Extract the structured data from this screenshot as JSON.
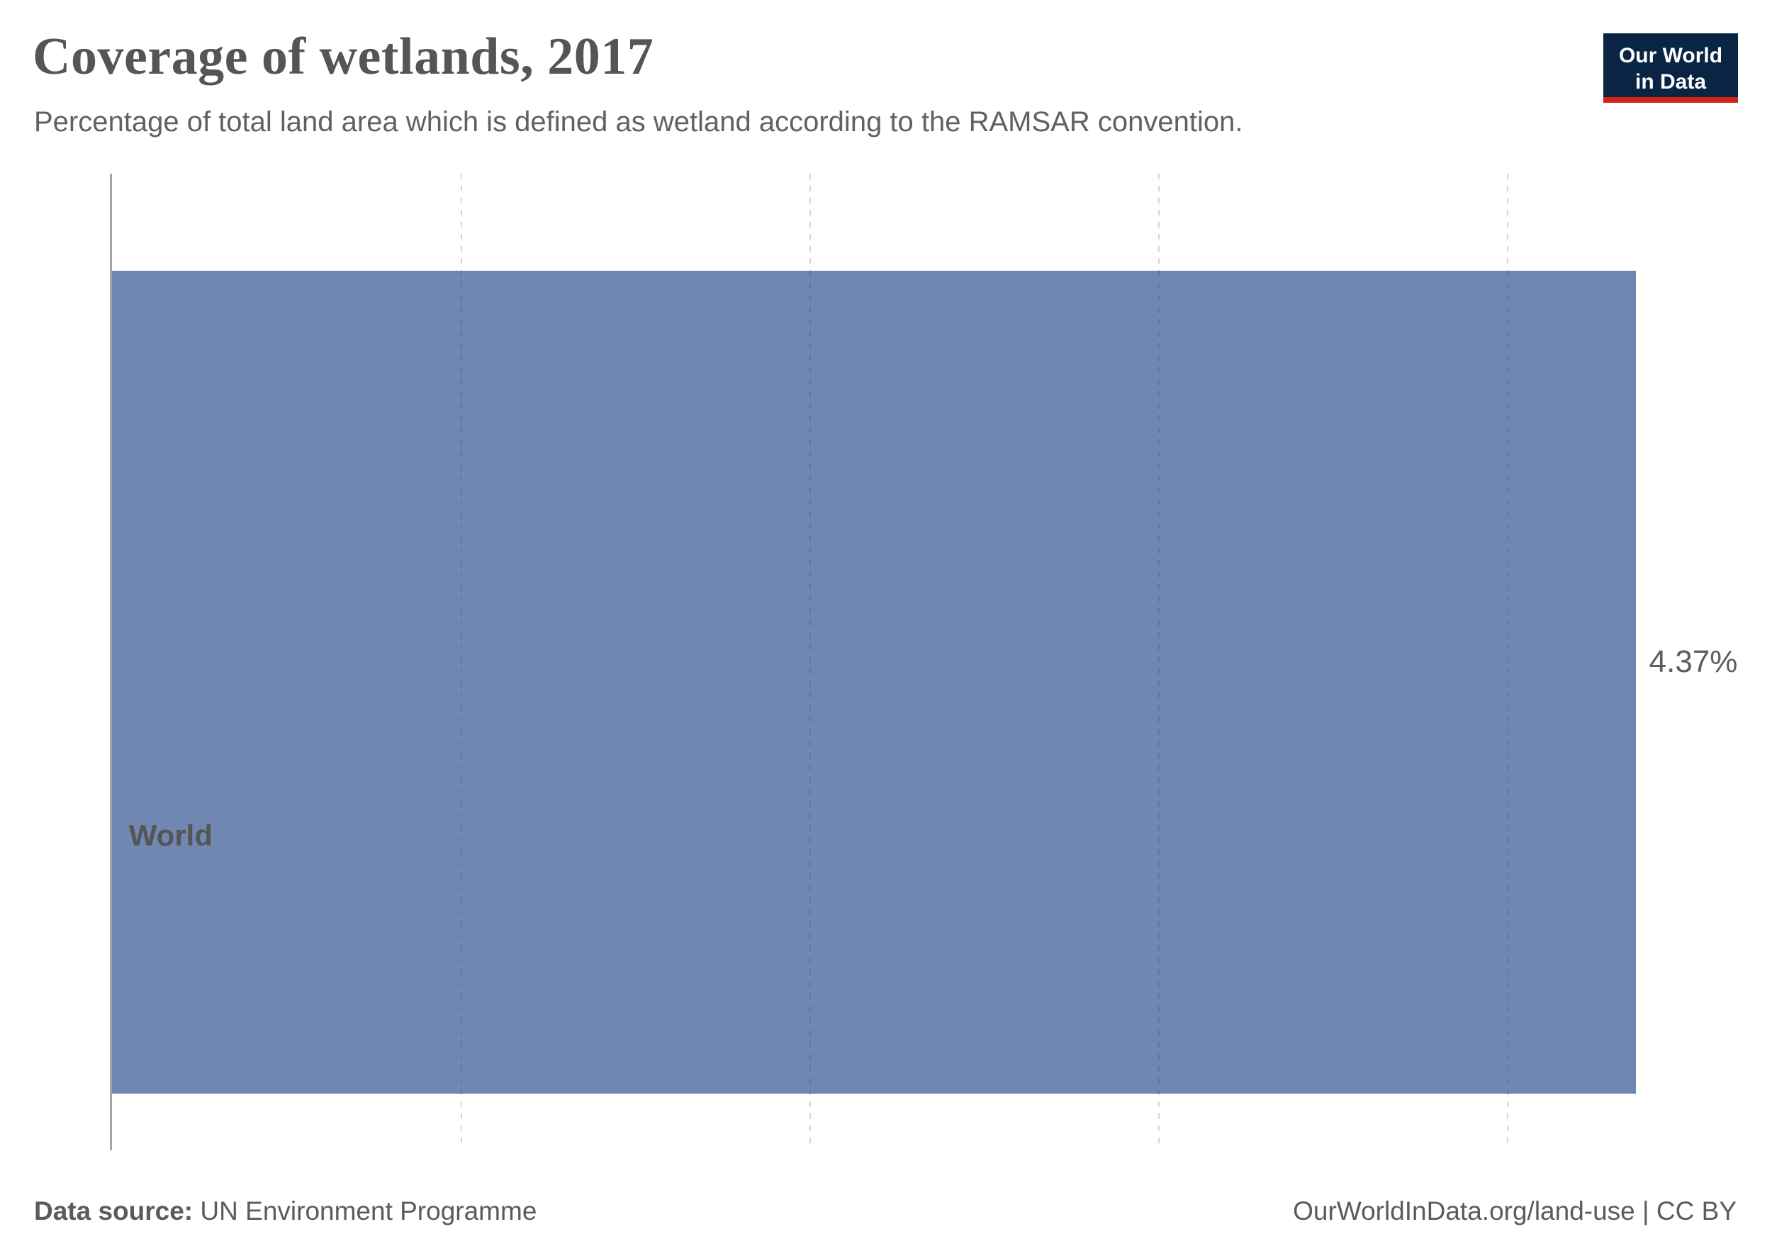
{
  "chart_data": {
    "type": "bar",
    "orientation": "horizontal",
    "title": "Coverage of wetlands, 2017",
    "subtitle": "Percentage of total land area which is defined as wetland according to the RAMSAR convention.",
    "categories": [
      "World"
    ],
    "values": [
      4.37
    ],
    "value_labels": [
      "4.37%"
    ],
    "unit": "%",
    "xlim": [
      0,
      4.7
    ],
    "gridline_values": [
      1,
      2,
      3,
      4
    ],
    "grid": "dashed-vertical",
    "legend": "none",
    "xlabel": "",
    "ylabel": "",
    "bar_color": "#7088b1"
  },
  "logo": {
    "line1": "Our World",
    "line2": "in Data",
    "bg_color": "#0a2443",
    "accent_color": "#d1231a"
  },
  "footer": {
    "source_label": "Data source:",
    "source_value": "UN Environment Programme",
    "attribution": "OurWorldInData.org/land-use | CC BY"
  }
}
